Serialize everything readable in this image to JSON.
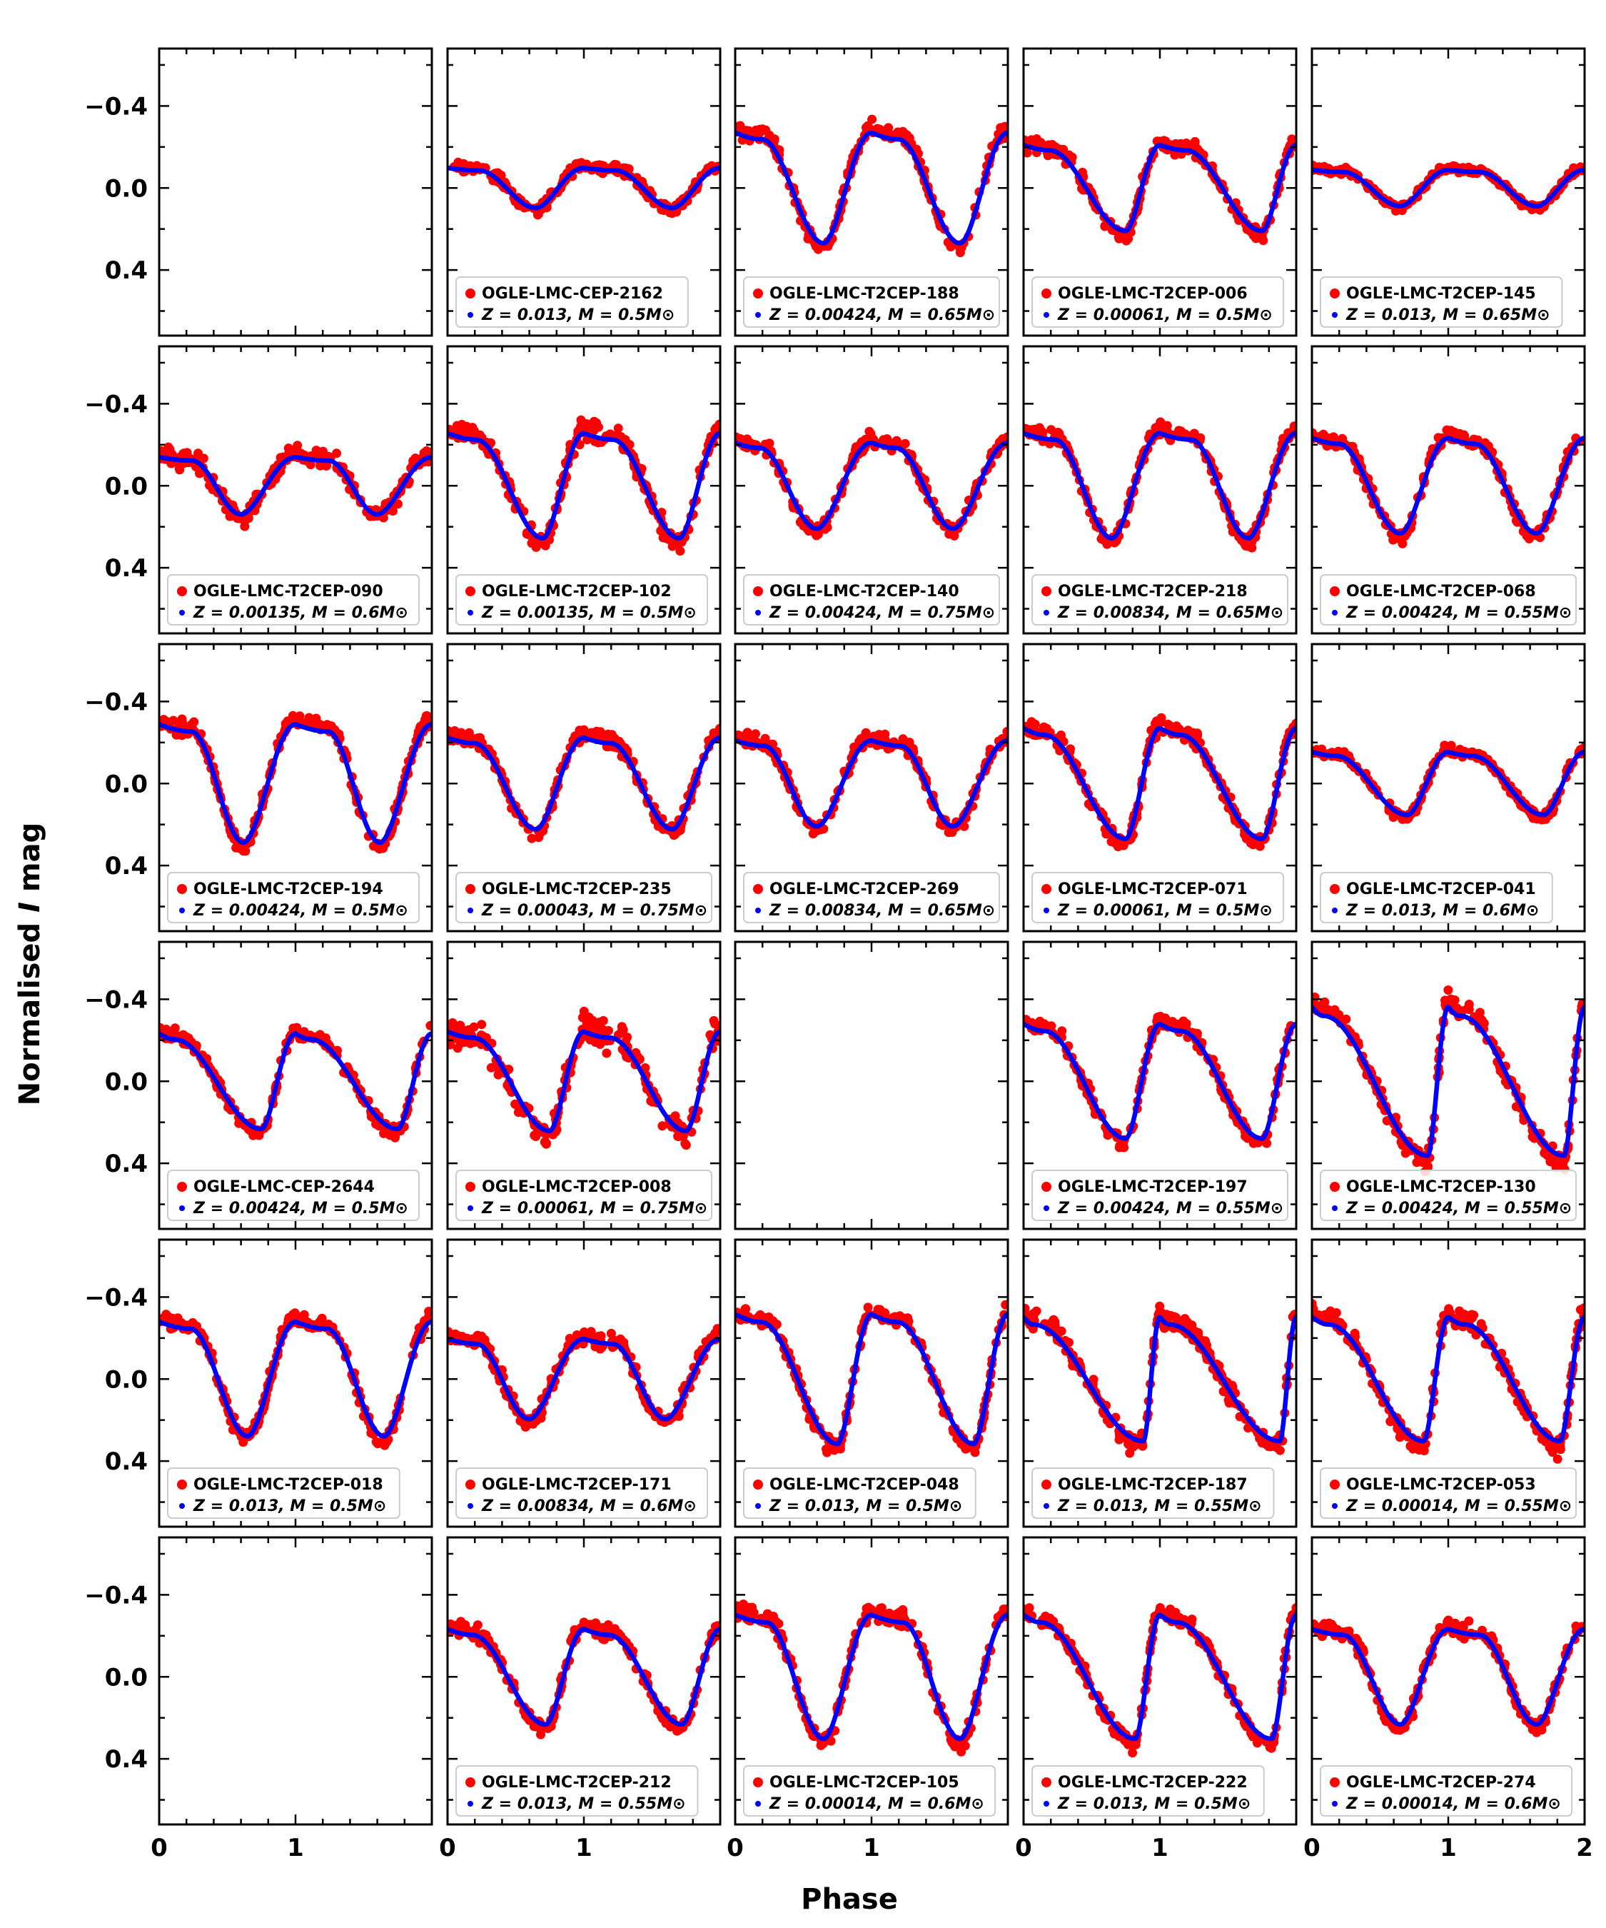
{
  "figure": {
    "xlabel": "Phase",
    "ylabel": "Normalised I mag",
    "ylabel_italic_part": "I",
    "xticks": [
      "0",
      "1",
      "2"
    ],
    "yticks": [
      "−0.4",
      "0.0",
      "0.4"
    ],
    "colors": {
      "observed": "#ff0000",
      "model": "#0000ff",
      "frame": "#000000",
      "legend_border": "#cccccc"
    }
  },
  "chart_data": {
    "type": "scatter",
    "layout": "6 rows x 5 columns of light-curve panels",
    "xlim": [
      0,
      2
    ],
    "ylim": [
      0.72,
      -0.68
    ],
    "y_inverted": true,
    "series_style": {
      "observed": "red points",
      "model": "blue line (Z, M labelled per panel)"
    },
    "panels": [
      {
        "empty": true
      },
      {
        "star": "OGLE-LMC-CEP-2162",
        "model": "Z = 0.013, M = 0.5M⊙",
        "minPhase": 0.65,
        "amp": 0.21,
        "riseFrac": 0.35,
        "noise": 0.025
      },
      {
        "star": "OGLE-LMC-T2CEP-188",
        "model": "Z = 0.00424, M = 0.65M⊙",
        "minPhase": 0.65,
        "amp": 0.58,
        "riseFrac": 0.3,
        "noise": 0.03
      },
      {
        "star": "OGLE-LMC-T2CEP-006",
        "model": "Z = 0.00061, M = 0.5M⊙",
        "minPhase": 0.75,
        "amp": 0.45,
        "riseFrac": 0.25,
        "noise": 0.03
      },
      {
        "star": "OGLE-LMC-T2CEP-145",
        "model": "Z = 0.013, M = 0.65M⊙",
        "minPhase": 0.65,
        "amp": 0.19,
        "riseFrac": 0.35,
        "noise": 0.015
      },
      {
        "star": "OGLE-LMC-T2CEP-090",
        "model": "Z = 0.00135, M = 0.6M⊙",
        "minPhase": 0.6,
        "amp": 0.3,
        "riseFrac": 0.4,
        "noise": 0.04
      },
      {
        "star": "OGLE-LMC-T2CEP-102",
        "model": "Z = 0.00135, M = 0.5M⊙",
        "minPhase": 0.7,
        "amp": 0.55,
        "riseFrac": 0.3,
        "noise": 0.04
      },
      {
        "star": "OGLE-LMC-T2CEP-140",
        "model": "Z = 0.00424, M = 0.75M⊙",
        "minPhase": 0.6,
        "amp": 0.45,
        "riseFrac": 0.3,
        "noise": 0.03
      },
      {
        "star": "OGLE-LMC-T2CEP-218",
        "model": "Z = 0.00834, M = 0.65M⊙",
        "minPhase": 0.65,
        "amp": 0.55,
        "riseFrac": 0.35,
        "noise": 0.03
      },
      {
        "star": "OGLE-LMC-T2CEP-068",
        "model": "Z = 0.00424, M = 0.55M⊙",
        "minPhase": 0.65,
        "amp": 0.5,
        "riseFrac": 0.3,
        "noise": 0.03
      },
      {
        "star": "OGLE-LMC-T2CEP-194",
        "model": "Z = 0.00424, M = 0.5M⊙",
        "minPhase": 0.62,
        "amp": 0.62,
        "riseFrac": 0.38,
        "noise": 0.03
      },
      {
        "star": "OGLE-LMC-T2CEP-235",
        "model": "Z = 0.00043, M = 0.75M⊙",
        "minPhase": 0.65,
        "amp": 0.48,
        "riseFrac": 0.3,
        "noise": 0.03
      },
      {
        "star": "OGLE-LMC-T2CEP-269",
        "model": "Z = 0.00834, M = 0.65M⊙",
        "minPhase": 0.6,
        "amp": 0.45,
        "riseFrac": 0.35,
        "noise": 0.03
      },
      {
        "star": "OGLE-LMC-T2CEP-071",
        "model": "Z = 0.00061, M = 0.5M⊙",
        "minPhase": 0.75,
        "amp": 0.58,
        "riseFrac": 0.2,
        "noise": 0.035
      },
      {
        "star": "OGLE-LMC-T2CEP-041",
        "model": "Z = 0.013, M = 0.6M⊙",
        "minPhase": 0.7,
        "amp": 0.33,
        "riseFrac": 0.25,
        "noise": 0.02
      },
      {
        "star": "OGLE-LMC-CEP-2644",
        "model": "Z = 0.00424, M = 0.5M⊙",
        "minPhase": 0.75,
        "amp": 0.5,
        "riseFrac": 0.15,
        "noise": 0.025
      },
      {
        "star": "OGLE-LMC-T2CEP-008",
        "model": "Z = 0.00061, M = 0.75M⊙",
        "minPhase": 0.75,
        "amp": 0.52,
        "riseFrac": 0.25,
        "noise": 0.06
      },
      {
        "empty": true
      },
      {
        "star": "OGLE-LMC-T2CEP-197",
        "model": "Z = 0.00424, M = 0.55M⊙",
        "minPhase": 0.75,
        "amp": 0.6,
        "riseFrac": 0.2,
        "noise": 0.03
      },
      {
        "star": "OGLE-LMC-T2CEP-130",
        "model": "Z = 0.00424, M = 0.55M⊙",
        "minPhase": 0.85,
        "amp": 0.78,
        "riseFrac": 0.1,
        "noise": 0.04
      },
      {
        "star": "OGLE-LMC-T2CEP-018",
        "model": "Z = 0.013, M = 0.5M⊙",
        "minPhase": 0.65,
        "amp": 0.6,
        "riseFrac": 0.35,
        "noise": 0.03
      },
      {
        "star": "OGLE-LMC-T2CEP-171",
        "model": "Z = 0.00834, M = 0.6M⊙",
        "minPhase": 0.6,
        "amp": 0.42,
        "riseFrac": 0.35,
        "noise": 0.035
      },
      {
        "star": "OGLE-LMC-T2CEP-048",
        "model": "Z = 0.013, M = 0.5M⊙",
        "minPhase": 0.75,
        "amp": 0.68,
        "riseFrac": 0.25,
        "noise": 0.03
      },
      {
        "star": "OGLE-LMC-T2CEP-187",
        "model": "Z = 0.013, M = 0.55M⊙",
        "minPhase": 0.88,
        "amp": 0.65,
        "riseFrac": 0.08,
        "noise": 0.04
      },
      {
        "star": "OGLE-LMC-T2CEP-053",
        "model": "Z = 0.00014, M = 0.55M⊙",
        "minPhase": 0.82,
        "amp": 0.65,
        "riseFrac": 0.15,
        "noise": 0.04
      },
      {
        "empty": true
      },
      {
        "star": "OGLE-LMC-T2CEP-212",
        "model": "Z = 0.013, M = 0.55M⊙",
        "minPhase": 0.72,
        "amp": 0.5,
        "riseFrac": 0.25,
        "noise": 0.03
      },
      {
        "star": "OGLE-LMC-T2CEP-105",
        "model": "Z = 0.00014, M = 0.6M⊙",
        "minPhase": 0.65,
        "amp": 0.65,
        "riseFrac": 0.35,
        "noise": 0.035
      },
      {
        "star": "OGLE-LMC-T2CEP-222",
        "model": "Z = 0.013, M = 0.5M⊙",
        "minPhase": 0.82,
        "amp": 0.65,
        "riseFrac": 0.15,
        "noise": 0.03
      },
      {
        "star": "OGLE-LMC-T2CEP-274",
        "model": "Z = 0.00014, M = 0.6M⊙",
        "minPhase": 0.65,
        "amp": 0.5,
        "riseFrac": 0.35,
        "noise": 0.03
      }
    ]
  }
}
